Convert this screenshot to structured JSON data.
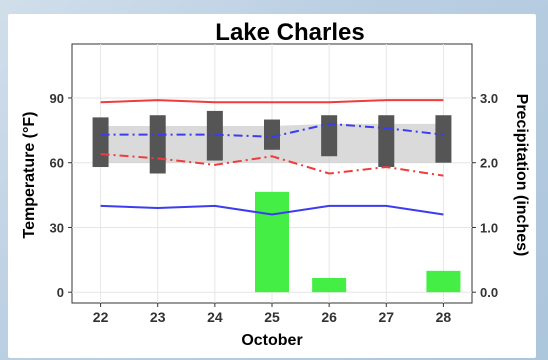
{
  "chart_data": {
    "type": "combo",
    "title": "Lake Charles",
    "xlabel": "October",
    "ylabel_left": "Temperature (°F)",
    "ylabel_right": "Precipitation (inches)",
    "x": [
      22,
      23,
      24,
      25,
      26,
      27,
      28
    ],
    "x_tick_labels": [
      "22",
      "23",
      "24",
      "25",
      "26",
      "27",
      "28"
    ],
    "ylim_left": [
      -5,
      115
    ],
    "ylim_right": [
      -0.1666667,
      3.8333333
    ],
    "y_ticks_left": [
      0,
      30,
      60,
      90
    ],
    "y_tick_labels_left": [
      "0",
      "30",
      "60",
      "90"
    ],
    "y_ticks_right": [
      0.0,
      1.0,
      2.0,
      3.0
    ],
    "y_tick_labels_right": [
      "0.0",
      "1.0",
      "2.0",
      "3.0"
    ],
    "grid": true,
    "record_high": {
      "color": "#f03c3c",
      "style": "solid",
      "values": [
        88,
        89,
        88,
        88,
        88,
        89,
        89
      ]
    },
    "record_low": {
      "color": "#3c3cf0",
      "style": "solid",
      "values": [
        40,
        39,
        40,
        36,
        40,
        40,
        36
      ]
    },
    "normal_high": {
      "color": "#3c3cf0",
      "style": "dashdot",
      "values": [
        73,
        73,
        73,
        72,
        78,
        76,
        73
      ]
    },
    "normal_low": {
      "color": "#f03c3c",
      "style": "dashdot",
      "values": [
        64,
        62,
        59,
        63,
        55,
        58,
        54
      ]
    },
    "normal_band": {
      "color": "#bbbbbb",
      "upper": [
        77,
        77,
        77,
        77,
        78,
        78,
        78
      ],
      "lower": [
        60,
        60,
        60,
        60,
        60,
        60,
        60
      ]
    },
    "observed_range": {
      "color": "#555555",
      "highs": [
        81,
        82,
        84,
        80,
        82,
        82,
        82
      ],
      "lows": [
        58,
        55,
        61,
        66,
        63,
        58,
        60
      ]
    },
    "precipitation": {
      "color": "#44ee44",
      "values": [
        0.0,
        0.0,
        0.0,
        1.55,
        0.22,
        0.0,
        0.33
      ]
    }
  }
}
